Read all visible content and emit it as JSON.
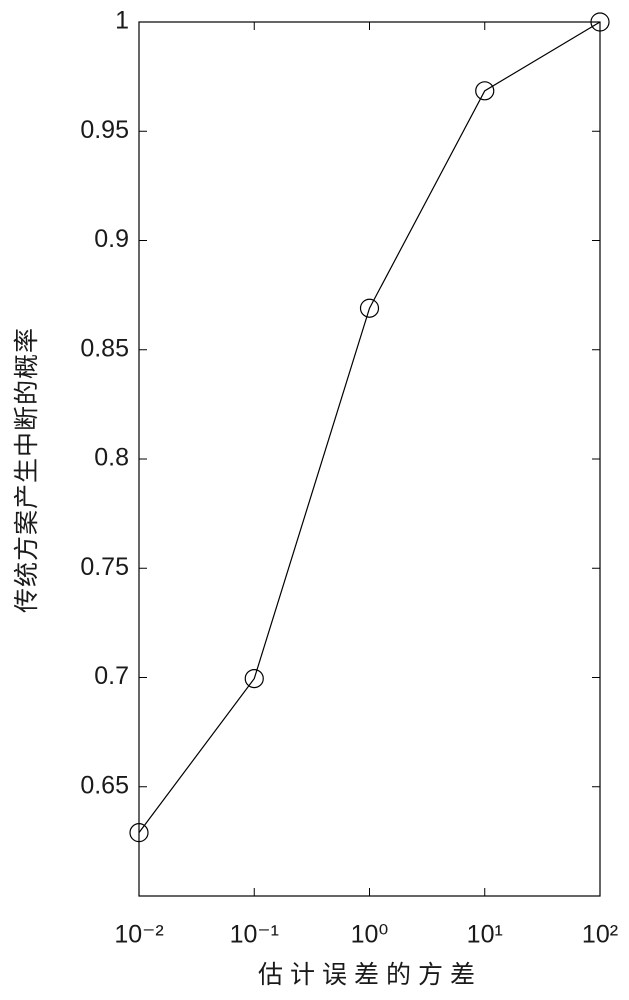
{
  "chart_data": {
    "type": "line",
    "xlabel": "估计误差的方差",
    "ylabel": "传统方案产生中断的概率",
    "x": [
      0.01,
      0.1,
      1,
      10,
      100
    ],
    "values": [
      0.629,
      0.6995,
      0.869,
      0.9685,
      1.0
    ],
    "color": "#000000",
    "marker": "circle",
    "xscale": "log",
    "xlim": [
      0.01,
      100
    ],
    "xticks": [
      {
        "value": 0.01,
        "label": "10⁻²"
      },
      {
        "value": 0.1,
        "label": "10⁻¹"
      },
      {
        "value": 1,
        "label": "10⁰"
      },
      {
        "value": 10,
        "label": "10¹"
      },
      {
        "value": 100,
        "label": "10²"
      }
    ],
    "ylim": [
      0.6,
      1
    ],
    "yticks": [
      0.65,
      0.7,
      0.75,
      0.8,
      0.85,
      0.9,
      0.95,
      1
    ],
    "grid": false
  }
}
